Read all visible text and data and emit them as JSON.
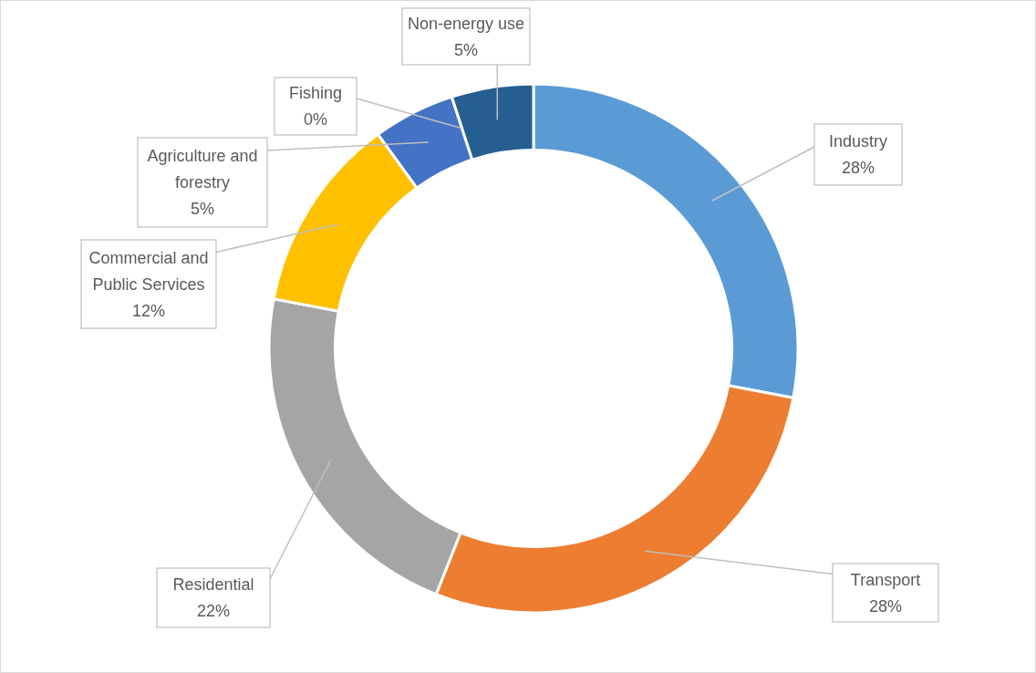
{
  "chart_data": {
    "type": "donut",
    "categories": [
      "Industry",
      "Transport",
      "Residential",
      "Commercial and Public Services",
      "Agriculture and forestry",
      "Fishing",
      "Non-energy use"
    ],
    "values": [
      28,
      28,
      22,
      12,
      5,
      0,
      5
    ],
    "value_labels": [
      "28%",
      "28%",
      "22%",
      "12%",
      "5%",
      "0%",
      "5%"
    ],
    "colors": [
      "#5b9bd5",
      "#ed7d31",
      "#a5a5a5",
      "#ffc000",
      "#4472c4",
      "#70ad47",
      "#255e91"
    ],
    "legend": false
  }
}
